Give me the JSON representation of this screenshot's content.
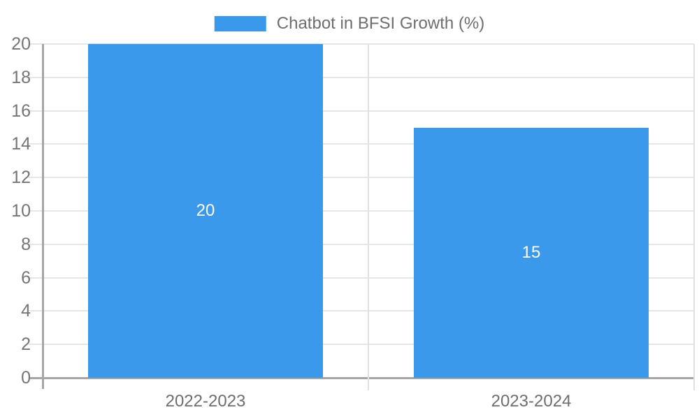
{
  "legend": {
    "label": "Chatbot in BFSI Growth (%)"
  },
  "colors": {
    "bar": "#3B99EC",
    "gridline": "#E6E6E6",
    "category_boundary": "#E0E0E0",
    "axis": "#A6A6A6",
    "y_tick_text": "#757575",
    "x_tick_text": "#6E6E6E",
    "legend_text": "#6E6E6E",
    "data_label_text": "#FFFFFF",
    "background": "#FFFFFF"
  },
  "chart_data": {
    "type": "bar",
    "title": "Chatbot in BFSI Growth (%)",
    "series_name": "Chatbot in BFSI Growth (%)",
    "categories": [
      "2022-2023",
      "2023-2024"
    ],
    "values": [
      20,
      15
    ],
    "data_labels": [
      "20",
      "15"
    ],
    "xlabel": "",
    "ylabel": "",
    "ylim": [
      0,
      20
    ],
    "yticks": [
      0,
      2,
      4,
      6,
      8,
      10,
      12,
      14,
      16,
      18,
      20
    ],
    "grid": true,
    "legend_position": "top-center"
  }
}
